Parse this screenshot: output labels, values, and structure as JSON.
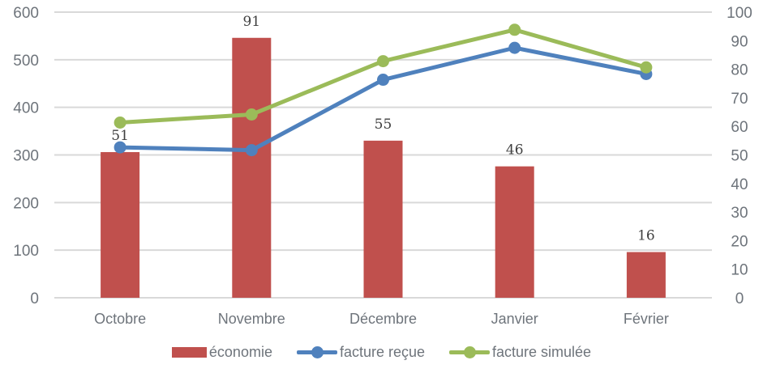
{
  "chart_data": {
    "type": "combo",
    "title": "",
    "categories": [
      "Octobre",
      "Novembre",
      "Décembre",
      "Janvier",
      "Février"
    ],
    "series": [
      {
        "name": "économie",
        "type": "bar",
        "axis": "right",
        "color": "#C0504D",
        "values": [
          51,
          91,
          55,
          46,
          16
        ],
        "data_labels": true
      },
      {
        "name": "facture reçue",
        "type": "line",
        "axis": "left",
        "color": "#4F81BD",
        "values": [
          316,
          310,
          458,
          525,
          470
        ],
        "data_labels": false
      },
      {
        "name": "facture simulée",
        "type": "line",
        "axis": "left",
        "color": "#9BBB59",
        "values": [
          368,
          385,
          497,
          563,
          484
        ],
        "data_labels": false
      }
    ],
    "axes": {
      "left": {
        "min": 0,
        "max": 600,
        "step": 100,
        "tick_labels": [
          "0",
          "100",
          "200",
          "300",
          "400",
          "500",
          "600"
        ]
      },
      "right": {
        "min": 0,
        "max": 100,
        "step": 10,
        "tick_labels": [
          "0",
          "10",
          "20",
          "30",
          "40",
          "50",
          "60",
          "70",
          "80",
          "90",
          "100"
        ]
      }
    },
    "grid": true,
    "legend_position": "bottom",
    "colors": {
      "grid": "#D9D9D9",
      "axis_text": "#6E747B",
      "data_label_text": "#3F3F3F",
      "background": "#FFFFFF"
    }
  }
}
